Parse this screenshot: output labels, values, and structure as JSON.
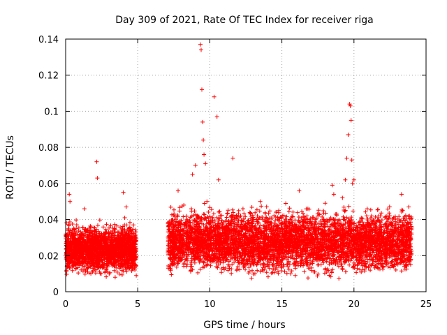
{
  "chart_data": {
    "type": "scatter",
    "title": "Day 309 of 2021, Rate Of TEC Index for receiver riga",
    "xlabel": "GPS time / hours",
    "ylabel": "ROTI / TECUs",
    "xlim": [
      0,
      25
    ],
    "ylim": [
      0,
      0.14
    ],
    "grid": true,
    "marker": "+",
    "color": "#ff0000",
    "x_ticks": [
      {
        "value": 0,
        "label": "0"
      },
      {
        "value": 5,
        "label": "5"
      },
      {
        "value": 10,
        "label": "10"
      },
      {
        "value": 15,
        "label": "15"
      },
      {
        "value": 20,
        "label": "20"
      },
      {
        "value": 25,
        "label": "25"
      }
    ],
    "y_ticks": [
      {
        "value": 0,
        "label": "0"
      },
      {
        "value": 0.02,
        "label": "0.02"
      },
      {
        "value": 0.04,
        "label": "0.04"
      },
      {
        "value": 0.06,
        "label": "0.06"
      },
      {
        "value": 0.08,
        "label": "0.08"
      },
      {
        "value": 0.1,
        "label": "0.1"
      },
      {
        "value": 0.12,
        "label": "0.12"
      },
      {
        "value": 0.14,
        "label": "0.14"
      }
    ],
    "series": [
      {
        "name": "ROTI",
        "x": [
          0.1,
          0.2,
          0.25,
          0.3,
          0.35,
          0.5,
          0.8,
          1.0,
          1.3,
          1.5,
          1.8,
          2.0,
          2.1,
          2.15,
          2.2,
          2.3,
          2.5,
          2.8,
          3.0,
          3.3,
          3.5,
          3.7,
          3.9,
          4.0,
          4.1,
          4.2,
          4.3,
          4.4,
          4.5,
          4.6,
          4.7,
          4.8,
          4.9,
          7.1,
          7.3,
          7.5,
          7.8,
          8.0,
          8.2,
          8.5,
          8.8,
          9.0,
          9.2,
          9.35,
          9.4,
          9.45,
          9.5,
          9.55,
          9.6,
          9.7,
          9.8,
          10.0,
          10.3,
          10.5,
          10.6,
          10.8,
          11.0,
          11.3,
          11.6,
          11.8,
          12.0,
          12.3,
          12.5,
          12.8,
          13.0,
          13.3,
          13.5,
          13.8,
          14.0,
          14.3,
          14.5,
          14.8,
          15.0,
          15.3,
          15.5,
          15.8,
          16.0,
          16.2,
          16.5,
          16.8,
          17.0,
          17.3,
          17.5,
          17.8,
          18.0,
          18.2,
          18.4,
          18.5,
          18.6,
          18.8,
          19.0,
          19.2,
          19.4,
          19.5,
          19.6,
          19.7,
          19.75,
          19.8,
          19.85,
          19.9,
          20.0,
          20.2,
          20.5,
          20.8,
          21.0,
          21.3,
          21.5,
          21.8,
          22.0,
          22.3,
          22.5,
          22.8,
          23.0,
          23.3,
          23.5,
          23.8,
          23.9
        ],
        "y": [
          0.021,
          0.026,
          0.054,
          0.05,
          0.031,
          0.022,
          0.025,
          0.02,
          0.046,
          0.024,
          0.021,
          0.031,
          0.027,
          0.072,
          0.063,
          0.026,
          0.021,
          0.027,
          0.024,
          0.019,
          0.023,
          0.026,
          0.022,
          0.055,
          0.041,
          0.047,
          0.03,
          0.035,
          0.024,
          0.02,
          0.018,
          0.022,
          0.009,
          0.022,
          0.025,
          0.03,
          0.056,
          0.034,
          0.048,
          0.031,
          0.065,
          0.07,
          0.038,
          0.137,
          0.134,
          0.112,
          0.094,
          0.084,
          0.076,
          0.071,
          0.05,
          0.039,
          0.108,
          0.097,
          0.062,
          0.029,
          0.032,
          0.026,
          0.074,
          0.027,
          0.028,
          0.046,
          0.037,
          0.03,
          0.028,
          0.042,
          0.05,
          0.035,
          0.026,
          0.033,
          0.029,
          0.041,
          0.037,
          0.034,
          0.032,
          0.029,
          0.034,
          0.056,
          0.038,
          0.046,
          0.039,
          0.035,
          0.042,
          0.029,
          0.049,
          0.028,
          0.037,
          0.059,
          0.054,
          0.043,
          0.032,
          0.052,
          0.062,
          0.074,
          0.087,
          0.104,
          0.103,
          0.095,
          0.073,
          0.06,
          0.062,
          0.034,
          0.029,
          0.036,
          0.031,
          0.038,
          0.034,
          0.026,
          0.028,
          0.03,
          0.024,
          0.032,
          0.029,
          0.054,
          0.037,
          0.047,
          0.022
        ]
      }
    ]
  }
}
